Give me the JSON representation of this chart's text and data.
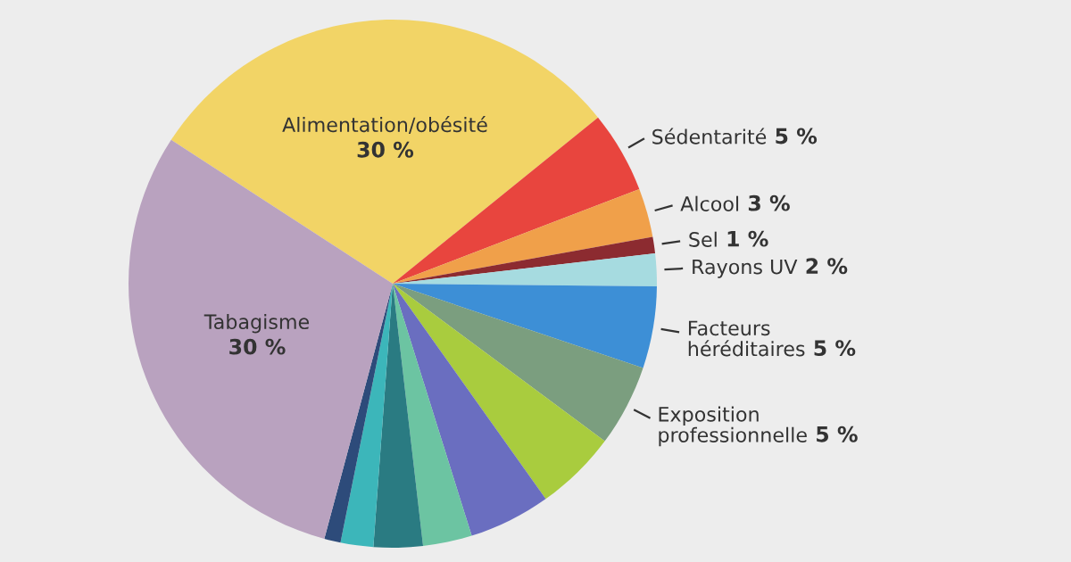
{
  "chart_data": {
    "type": "pie",
    "categories": [
      "Alimentation/obésité",
      "Sédentarité",
      "Alcool",
      "Sel",
      "Rayons UV",
      "Facteurs héréditaires",
      "Exposition professionnelle",
      null,
      null,
      null,
      null,
      null,
      null,
      "Tabagisme"
    ],
    "values": [
      30,
      5,
      3,
      1,
      2,
      5,
      5,
      5,
      5,
      3,
      3,
      2,
      1,
      30
    ],
    "value_labels": [
      "30 %",
      "5 %",
      "3 %",
      "1 %",
      "2 %",
      "5 %",
      "5 %",
      null,
      null,
      null,
      null,
      null,
      null,
      "30 %"
    ],
    "colors": [
      "#f2d466",
      "#e8453e",
      "#f0a04a",
      "#8c2b30",
      "#a6dbe0",
      "#3d8fd6",
      "#7b9e7f",
      "#a9cc3e",
      "#6a6ec0",
      "#6cc4a2",
      "#2a7b82",
      "#3cb6ba",
      "#2d4b7a",
      "#b9a2bf"
    ]
  }
}
